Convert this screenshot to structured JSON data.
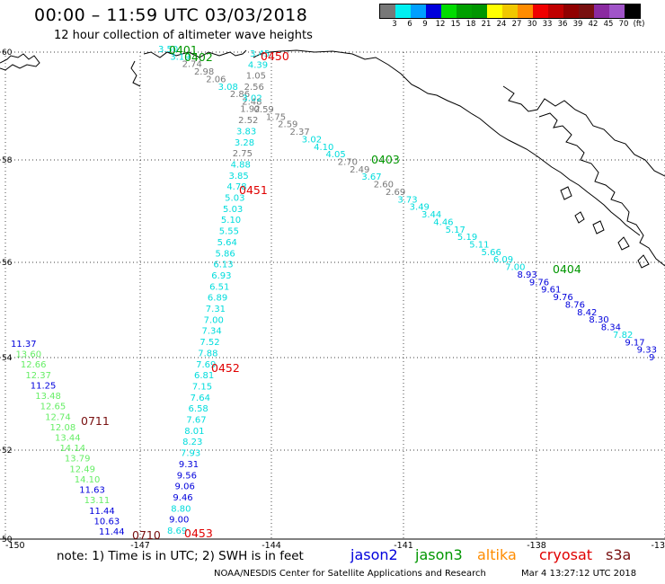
{
  "title": "00:00 – 11:59 UTC 03/03/2018",
  "subtitle": "12 hour collection of altimeter wave heights",
  "legend": {
    "colors": [
      "#787878",
      "#00f0f0",
      "#00a0ff",
      "#0000dc",
      "#00dc00",
      "#00a000",
      "#009600",
      "#ffff00",
      "#f0c800",
      "#ff8c00",
      "#f00000",
      "#c00000",
      "#900000",
      "#781010",
      "#8a2aa0",
      "#a054c8",
      "#000000"
    ],
    "labels": [
      "3",
      "6",
      "9",
      "12",
      "15",
      "18",
      "21",
      "24",
      "27",
      "30",
      "33",
      "36",
      "39",
      "42",
      "45",
      "70",
      "(ft)"
    ]
  },
  "axes": {
    "lat_labels": [
      "60",
      "58",
      "56",
      "54",
      "52",
      "50"
    ],
    "lon_labels": [
      "-150",
      "-147",
      "-144",
      "-141",
      "-138",
      "-13"
    ]
  },
  "note": "note: 1) Time is in UTC; 2) SWH is in feet",
  "satellites": [
    {
      "name": "jason2",
      "color": "#0000dc"
    },
    {
      "name": "jason3",
      "color": "#009600"
    },
    {
      "name": "altika",
      "color": "#ff8c00"
    },
    {
      "name": "cryosat",
      "color": "#e00000"
    },
    {
      "name": "s3a",
      "color": "#781010"
    }
  ],
  "footer": "NOAA/NESDIS Center for Satellite Applications and Research",
  "footer_date": "Mar  4 13:27:12 UTC 2018",
  "pass_times": [
    {
      "label": "0401",
      "color": "#009600"
    },
    {
      "label": "0402",
      "color": "#009600"
    },
    {
      "label": "0450",
      "color": "#e00000"
    },
    {
      "label": "0403",
      "color": "#009600"
    },
    {
      "label": "0451",
      "color": "#e00000"
    },
    {
      "label": "0404",
      "color": "#009600"
    },
    {
      "label": "0452",
      "color": "#e00000"
    },
    {
      "label": "0711",
      "color": "#781010"
    },
    {
      "label": "0710",
      "color": "#781010"
    },
    {
      "label": "0453",
      "color": "#e00000"
    }
  ],
  "tracks": [
    {
      "name": "track-a",
      "points": [
        {
          "v": "3.50",
          "c": "#00dcdc"
        },
        {
          "v": "3.19",
          "c": "#00dcdc"
        },
        {
          "v": "2.74",
          "c": "#787878"
        },
        {
          "v": "2.98",
          "c": "#787878"
        },
        {
          "v": "2.06",
          "c": "#787878"
        },
        {
          "v": "3.08",
          "c": "#00dcdc"
        },
        {
          "v": "2.86",
          "c": "#787878"
        },
        {
          "v": "2.48",
          "c": "#787878"
        },
        {
          "v": "0.59",
          "c": "#787878"
        },
        {
          "v": "1.75",
          "c": "#787878"
        },
        {
          "v": "2.59",
          "c": "#787878"
        },
        {
          "v": "2.37",
          "c": "#787878"
        },
        {
          "v": "3.02",
          "c": "#00dcdc"
        },
        {
          "v": "4.10",
          "c": "#00dcdc"
        },
        {
          "v": "4.05",
          "c": "#00dcdc"
        },
        {
          "v": "2.70",
          "c": "#787878"
        },
        {
          "v": "2.49",
          "c": "#787878"
        },
        {
          "v": "3.67",
          "c": "#00dcdc"
        },
        {
          "v": "2.60",
          "c": "#787878"
        },
        {
          "v": "2.69",
          "c": "#787878"
        },
        {
          "v": "3.73",
          "c": "#00dcdc"
        },
        {
          "v": "3.49",
          "c": "#00dcdc"
        },
        {
          "v": "3.44",
          "c": "#00dcdc"
        },
        {
          "v": "4.46",
          "c": "#00dcdc"
        },
        {
          "v": "5.17",
          "c": "#00dcdc"
        },
        {
          "v": "5.19",
          "c": "#00dcdc"
        },
        {
          "v": "5.11",
          "c": "#00dcdc"
        },
        {
          "v": "5.66",
          "c": "#00dcdc"
        },
        {
          "v": "6.09",
          "c": "#00dcdc"
        },
        {
          "v": "7.00",
          "c": "#00dcdc"
        },
        {
          "v": "8.93",
          "c": "#0000dc"
        },
        {
          "v": "9.76",
          "c": "#0000dc"
        },
        {
          "v": "9.61",
          "c": "#0000dc"
        },
        {
          "v": "9.76",
          "c": "#0000dc"
        },
        {
          "v": "8.76",
          "c": "#0000dc"
        },
        {
          "v": "8.42",
          "c": "#0000dc"
        },
        {
          "v": "8.30",
          "c": "#0000dc"
        },
        {
          "v": "8.34",
          "c": "#0000dc"
        },
        {
          "v": "7.82",
          "c": "#00dcdc"
        },
        {
          "v": "9.17",
          "c": "#0000dc"
        },
        {
          "v": "9.33",
          "c": "#0000dc"
        },
        {
          "v": "9",
          "c": "#0000dc"
        }
      ]
    },
    {
      "name": "track-b",
      "points": [
        {
          "v": "3.45",
          "c": "#00dcdc"
        },
        {
          "v": "4.39",
          "c": "#00dcdc"
        },
        {
          "v": "1.05",
          "c": "#787878"
        },
        {
          "v": "2.56",
          "c": "#787878"
        },
        {
          "v": "3.02",
          "c": "#00dcdc"
        },
        {
          "v": "1.92",
          "c": "#787878"
        },
        {
          "v": "2.52",
          "c": "#787878"
        },
        {
          "v": "3.83",
          "c": "#00dcdc"
        },
        {
          "v": "3.28",
          "c": "#00dcdc"
        },
        {
          "v": "2.75",
          "c": "#787878"
        },
        {
          "v": "4.88",
          "c": "#00dcdc"
        },
        {
          "v": "3.85",
          "c": "#00dcdc"
        },
        {
          "v": "4.78",
          "c": "#00dcdc"
        },
        {
          "v": "5.03",
          "c": "#00dcdc"
        },
        {
          "v": "5.03",
          "c": "#00dcdc"
        },
        {
          "v": "5.10",
          "c": "#00dcdc"
        },
        {
          "v": "5.55",
          "c": "#00dcdc"
        },
        {
          "v": "5.64",
          "c": "#00dcdc"
        },
        {
          "v": "5.86",
          "c": "#00dcdc"
        },
        {
          "v": "6.13",
          "c": "#00dcdc"
        },
        {
          "v": "6.93",
          "c": "#00dcdc"
        },
        {
          "v": "6.51",
          "c": "#00dcdc"
        },
        {
          "v": "6.89",
          "c": "#00dcdc"
        },
        {
          "v": "7.31",
          "c": "#00dcdc"
        },
        {
          "v": "7.00",
          "c": "#00dcdc"
        },
        {
          "v": "7.34",
          "c": "#00dcdc"
        },
        {
          "v": "7.52",
          "c": "#00dcdc"
        },
        {
          "v": "7.88",
          "c": "#00dcdc"
        },
        {
          "v": "7.69",
          "c": "#00dcdc"
        },
        {
          "v": "6.81",
          "c": "#00dcdc"
        },
        {
          "v": "7.15",
          "c": "#00dcdc"
        },
        {
          "v": "7.64",
          "c": "#00dcdc"
        },
        {
          "v": "6.58",
          "c": "#00dcdc"
        },
        {
          "v": "7.67",
          "c": "#00dcdc"
        },
        {
          "v": "8.01",
          "c": "#00dcdc"
        },
        {
          "v": "8.23",
          "c": "#00dcdc"
        },
        {
          "v": "7.93",
          "c": "#00dcdc"
        },
        {
          "v": "9.31",
          "c": "#0000dc"
        },
        {
          "v": "9.56",
          "c": "#0000dc"
        },
        {
          "v": "9.06",
          "c": "#0000dc"
        },
        {
          "v": "9.46",
          "c": "#0000dc"
        },
        {
          "v": "8.80",
          "c": "#00dcdc"
        },
        {
          "v": "9.00",
          "c": "#0000dc"
        },
        {
          "v": "8.69",
          "c": "#00dcdc"
        }
      ]
    },
    {
      "name": "track-c",
      "points": [
        {
          "v": "11.37",
          "c": "#0000dc"
        },
        {
          "v": "13.60",
          "c": "#66ee66"
        },
        {
          "v": "12.66",
          "c": "#66ee66"
        },
        {
          "v": "12.37",
          "c": "#66ee66"
        },
        {
          "v": "11.25",
          "c": "#0000dc"
        },
        {
          "v": "13.48",
          "c": "#66ee66"
        },
        {
          "v": "12.65",
          "c": "#66ee66"
        },
        {
          "v": "12.74",
          "c": "#66ee66"
        },
        {
          "v": "12.08",
          "c": "#66ee66"
        },
        {
          "v": "13.44",
          "c": "#66ee66"
        },
        {
          "v": "14.14",
          "c": "#66ee66"
        },
        {
          "v": "13.79",
          "c": "#66ee66"
        },
        {
          "v": "12.49",
          "c": "#66ee66"
        },
        {
          "v": "14.10",
          "c": "#66ee66"
        },
        {
          "v": "11.63",
          "c": "#0000dc"
        },
        {
          "v": "13.11",
          "c": "#66ee66"
        },
        {
          "v": "11.44",
          "c": "#0000dc"
        },
        {
          "v": "10.63",
          "c": "#0000dc"
        },
        {
          "v": "11.44",
          "c": "#0000dc"
        }
      ]
    }
  ]
}
